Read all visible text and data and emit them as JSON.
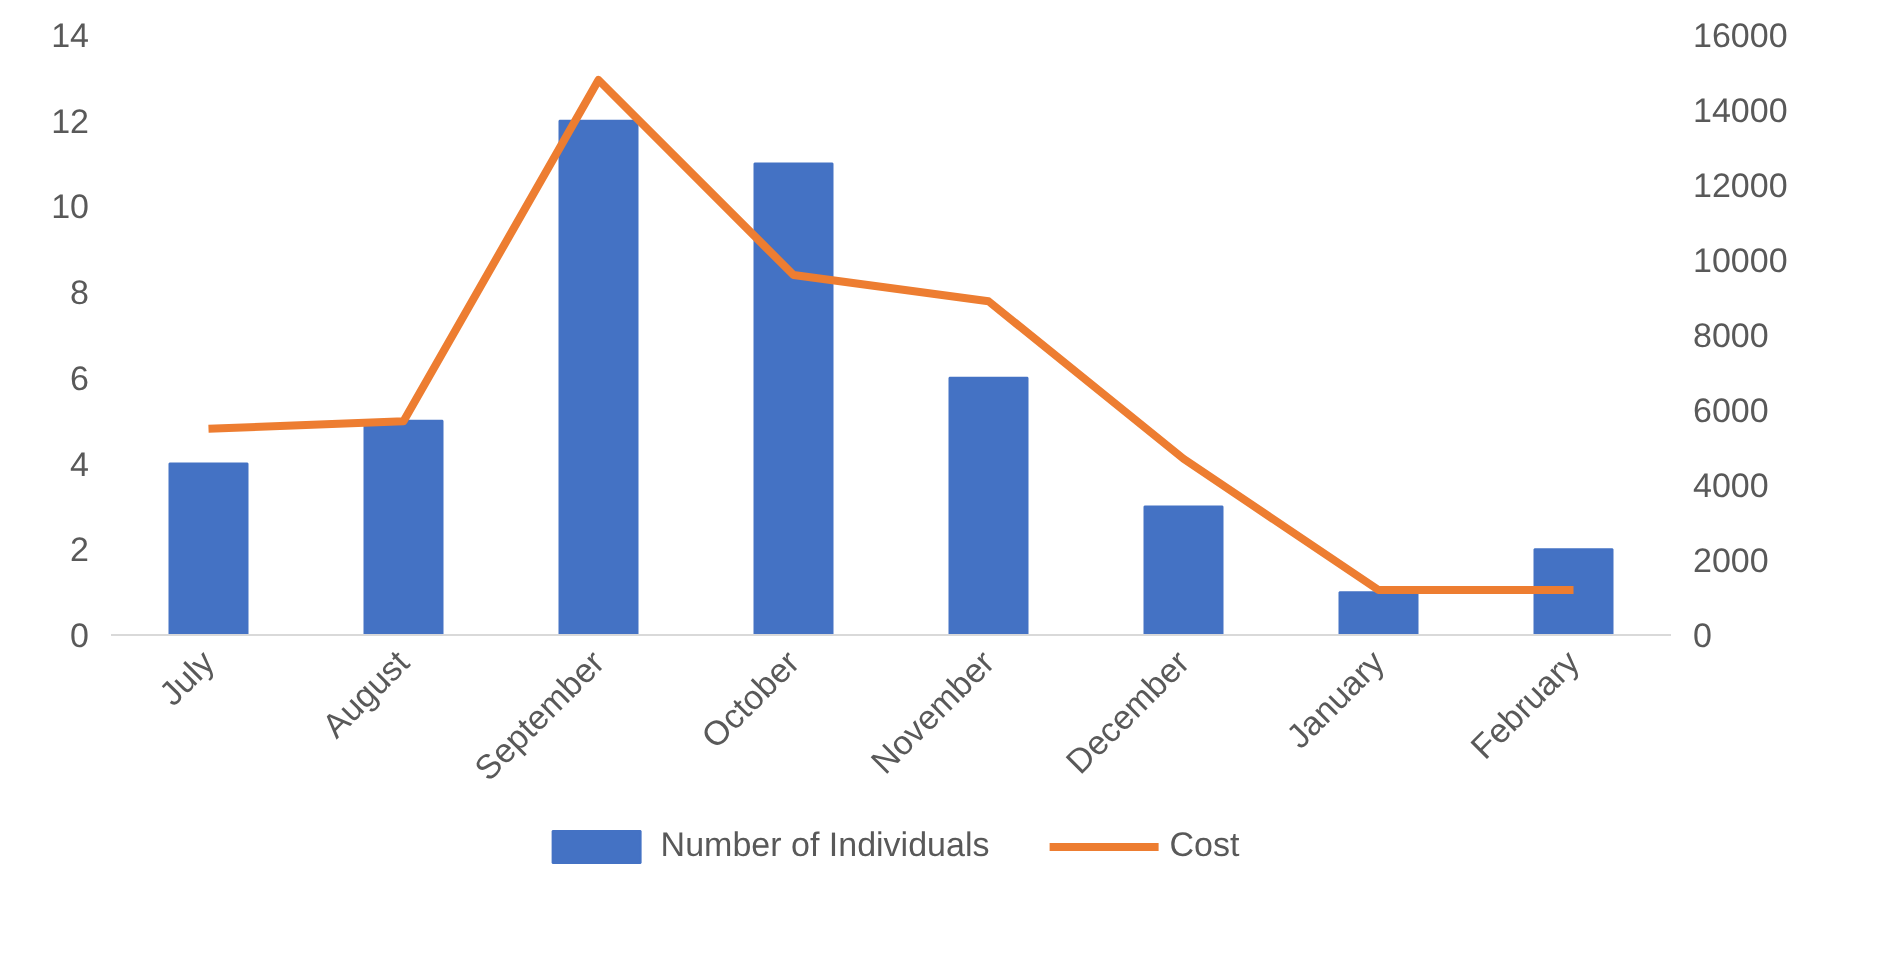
{
  "chart_data": {
    "type": "bar",
    "categories": [
      "July",
      "August",
      "September",
      "October",
      "November",
      "December",
      "January",
      "February"
    ],
    "series": [
      {
        "name": "Number of Individuals",
        "color": "#4472c4",
        "values": [
          4,
          5,
          12,
          11,
          6,
          3,
          1,
          2
        ]
      },
      {
        "name": "Cost",
        "color": "#ed7d31",
        "type": "line",
        "axis": "y2",
        "values": [
          5500,
          5700,
          14800,
          9600,
          8900,
          4700,
          1200,
          1200
        ]
      }
    ],
    "ylim": [
      0,
      14
    ],
    "yticks": [
      0,
      2,
      4,
      6,
      8,
      10,
      12,
      14
    ],
    "y2lim": [
      0,
      16000
    ],
    "y2ticks": [
      0,
      2000,
      4000,
      6000,
      8000,
      10000,
      12000,
      14000,
      16000
    ],
    "grid": false,
    "legend": "bottom",
    "marker": "none"
  }
}
